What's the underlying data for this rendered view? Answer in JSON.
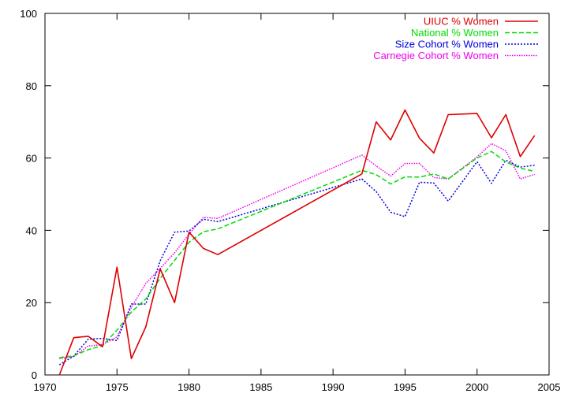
{
  "chart_data": {
    "type": "line",
    "title": "",
    "xlabel": "",
    "ylabel": "",
    "xlim": [
      1970,
      2005
    ],
    "ylim": [
      0,
      100
    ],
    "x_ticks": [
      "1970",
      "1975",
      "1980",
      "1985",
      "1990",
      "1995",
      "2000",
      "2005"
    ],
    "y_ticks": [
      "0",
      "20",
      "40",
      "60",
      "80",
      "100"
    ],
    "grid": false,
    "legend_position": "top-right",
    "series": [
      {
        "name": "UIUC % Women",
        "color": "#dd0000",
        "style": "solid",
        "x": [
          1971,
          1972,
          1973,
          1974,
          1975,
          1976,
          1977,
          1978,
          1979,
          1980,
          1981,
          1982,
          1992,
          1993,
          1994,
          1995,
          1996,
          1997,
          1998,
          2000,
          2001,
          2002,
          2003,
          2004
        ],
        "y": [
          0,
          10.3,
          10.7,
          7.8,
          29.8,
          4.5,
          13.3,
          29.3,
          20,
          39.5,
          35,
          33.3,
          55.6,
          70,
          65,
          73.3,
          65.5,
          61.4,
          72,
          72.3,
          65.6,
          72,
          60.4,
          66.2
        ]
      },
      {
        "name": "National % Women",
        "color": "#00dd00",
        "style": "dashed",
        "x": [
          1971,
          1972,
          1973,
          1974,
          1975,
          1976,
          1977,
          1978,
          1979,
          1980,
          1981,
          1982,
          1992,
          1993,
          1994,
          1995,
          1996,
          1997,
          1998,
          2000,
          2001,
          2002,
          2003,
          2004
        ],
        "y": [
          4.8,
          5.3,
          7,
          8.1,
          12.4,
          17.4,
          21,
          26.7,
          31.7,
          36.7,
          39.6,
          40.4,
          56.6,
          55.4,
          52.8,
          54.8,
          54.7,
          55.6,
          54.2,
          60,
          61.8,
          58.9,
          57.2,
          56.3
        ]
      },
      {
        "name": "Size Cohort % Women",
        "color": "#0000dd",
        "style": "dotted",
        "x": [
          1971,
          1972,
          1973,
          1974,
          1975,
          1976,
          1977,
          1978,
          1979,
          1980,
          1981,
          1982,
          1992,
          1993,
          1994,
          1995,
          1996,
          1997,
          1998,
          2000,
          2001,
          2002,
          2003,
          2004
        ],
        "y": [
          2.8,
          5.2,
          9.9,
          10.1,
          9.5,
          19.6,
          19.6,
          31.6,
          39.5,
          39.8,
          43.1,
          42.4,
          54.2,
          50.7,
          45,
          43.8,
          53.3,
          53.1,
          48.1,
          59,
          53,
          59.4,
          57.5,
          58
        ]
      },
      {
        "name": "Carnegie Cohort % Women",
        "color": "#ee00ee",
        "style": "fine-dotted",
        "x": [
          1971,
          1972,
          1973,
          1974,
          1975,
          1976,
          1977,
          1978,
          1979,
          1980,
          1981,
          1982,
          1992,
          1993,
          1994,
          1995,
          1996,
          1997,
          1998,
          2000,
          2001,
          2002,
          2003,
          2004
        ],
        "y": [
          4.5,
          5.1,
          8,
          8.4,
          10.5,
          18.7,
          25.3,
          29.5,
          33.8,
          38.9,
          43.6,
          43.3,
          60.8,
          57.8,
          55,
          58.5,
          58.5,
          54.6,
          54.2,
          60.3,
          64,
          62,
          54.2,
          55.5
        ]
      }
    ]
  }
}
